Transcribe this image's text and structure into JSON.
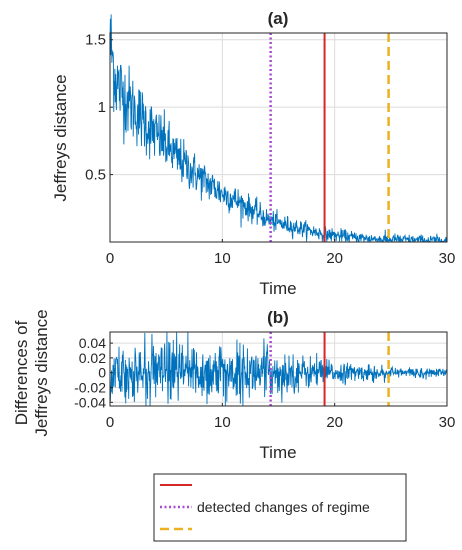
{
  "chart_data": [
    {
      "type": "line",
      "title": "(a)",
      "xlabel": "Time",
      "ylabel": "Jeffreys distance",
      "xlim": [
        0,
        30
      ],
      "ylim": [
        0,
        1.55
      ],
      "xticks": [
        0,
        10,
        20,
        30
      ],
      "yticks": [
        0.5,
        1,
        1.5
      ],
      "grid": true,
      "series": [
        {
          "color": "#0072BD",
          "style": "noisy exponential decay",
          "x": [
            0,
            0.5,
            1,
            2,
            3,
            4,
            5,
            6,
            7,
            8,
            9,
            10,
            11,
            12,
            13,
            14,
            15,
            16,
            17,
            18,
            19,
            20,
            22,
            24,
            26,
            28,
            30
          ],
          "y": [
            1.5,
            1.2,
            1.12,
            1.0,
            0.9,
            0.8,
            0.72,
            0.62,
            0.55,
            0.48,
            0.42,
            0.36,
            0.32,
            0.27,
            0.22,
            0.17,
            0.14,
            0.12,
            0.1,
            0.08,
            0.06,
            0.05,
            0.03,
            0.02,
            0.015,
            0.01,
            0.01
          ]
        }
      ],
      "vlines": [
        {
          "x": 14.3,
          "style": "dotted",
          "color": "#A84BD0"
        },
        {
          "x": 19.1,
          "style": "solid",
          "color": "#D62728"
        },
        {
          "x": 24.8,
          "style": "dashed",
          "color": "#EDB120"
        }
      ]
    },
    {
      "type": "line",
      "title": "(b)",
      "xlabel": "Time",
      "ylabel_lines": [
        "Differences of",
        "Jeffreys distance"
      ],
      "xlim": [
        0,
        30
      ],
      "ylim": [
        -0.045,
        0.055
      ],
      "xticks": [
        0,
        10,
        20,
        30
      ],
      "yticks": [
        -0.04,
        -0.02,
        0,
        0.02,
        0.04
      ],
      "ytick_labels": [
        "-0.04",
        "-0.02",
        "0",
        "0.02",
        "0.04"
      ],
      "grid": true,
      "series": [
        {
          "color": "#0072BD",
          "style": "zero-mean noise with shrinking amplitude",
          "x": [
            0,
            5,
            10,
            14.3,
            20,
            25,
            30
          ],
          "amplitude": [
            0.018,
            0.02,
            0.02,
            0.016,
            0.007,
            0.004,
            0.003
          ]
        }
      ],
      "vlines": [
        {
          "x": 14.3,
          "style": "dotted",
          "color": "#A84BD0"
        },
        {
          "x": 19.1,
          "style": "solid",
          "color": "#D62728"
        },
        {
          "x": 24.8,
          "style": "dashed",
          "color": "#EDB120"
        }
      ]
    }
  ],
  "legend": {
    "entries": [
      {
        "label": "",
        "style": "solid",
        "color": "#D62728"
      },
      {
        "label": "detected changes of regime",
        "style": "dotted",
        "color": "#A84BD0"
      },
      {
        "label": "",
        "style": "dashed",
        "color": "#EDB120"
      }
    ]
  }
}
